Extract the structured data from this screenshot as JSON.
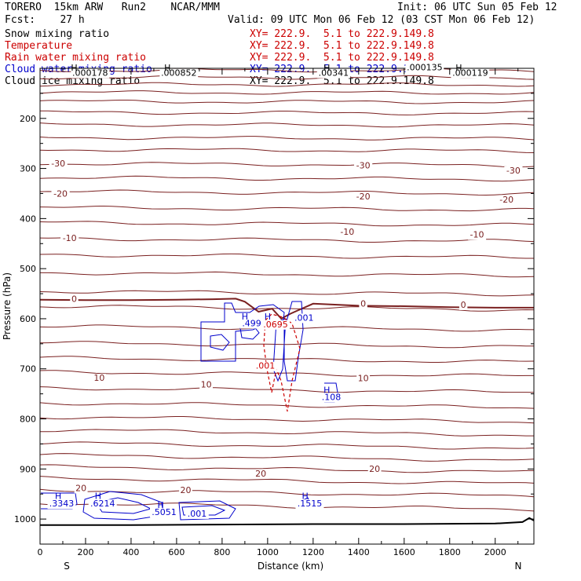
{
  "header": {
    "model": "TORERO  15km ARW   Run2    NCAR/MMM",
    "init": "Init: 06 UTC Sun 05 Feb 12",
    "fcst": "Fcst:    27 h",
    "valid": "Valid: 09 UTC Mon 06 Feb 12 (03 CST Mon 06 Feb 12)"
  },
  "fields": [
    {
      "name": "Snow mixing ratio",
      "xsec": "XY= 222.9.  5.1 to 222.9.149.8",
      "color": "#000000"
    },
    {
      "name": "Temperature",
      "xsec": "XY= 222.9.  5.1 to 222.9.149.8",
      "color": "#cc0000"
    },
    {
      "name": "Rain water mixing ratio",
      "xsec": "XY= 222.9.  5.1 to 222.9.149.8",
      "color": "#cc0000"
    },
    {
      "name": "Cloud water mixing ratio",
      "xsec": "XY= 222.9.  5.1 to 222.9.149.8",
      "color": "#0000cc"
    },
    {
      "name": "Cloud ice mixing ratio",
      "xsec": "XY= 222.9.  5.1 to 222.9.149.8",
      "color": "#000000"
    }
  ],
  "chart_data": {
    "type": "contour",
    "xlabel": "Distance (km)",
    "ylabel": "Pressure (hPa)",
    "xlim": [
      0,
      2170
    ],
    "ylim": [
      1050,
      100
    ],
    "x_ticks": [
      0,
      200,
      400,
      600,
      800,
      1000,
      1200,
      1400,
      1600,
      1800,
      2000
    ],
    "y_ticks": [
      200,
      300,
      400,
      500,
      600,
      700,
      800,
      900,
      1000
    ],
    "left_end": "S",
    "right_end": "N",
    "temperature_isotherms_p": [
      104,
      118,
      132,
      148,
      166,
      188,
      212,
      238,
      262,
      290,
      318,
      346,
      378,
      408,
      440,
      472,
      508,
      545,
      575,
      615,
      648,
      678,
      706,
      738,
      768,
      796,
      822,
      848,
      872,
      895,
      918,
      942,
      968
    ],
    "temperature_labels": [
      {
        "text": "-30",
        "x": 80,
        "p": 296
      },
      {
        "text": "-30",
        "x": 1420,
        "p": 300
      },
      {
        "text": "-30",
        "x": 2080,
        "p": 310
      },
      {
        "text": "-20",
        "x": 90,
        "p": 356
      },
      {
        "text": "-20",
        "x": 1420,
        "p": 362
      },
      {
        "text": "-20",
        "x": 2050,
        "p": 368
      },
      {
        "text": "-10",
        "x": 130,
        "p": 445
      },
      {
        "text": "-10",
        "x": 1350,
        "p": 432
      },
      {
        "text": "-10",
        "x": 1920,
        "p": 438
      },
      {
        "text": "0",
        "x": 150,
        "p": 566
      },
      {
        "text": "0",
        "x": 1420,
        "p": 576
      },
      {
        "text": "0",
        "x": 1860,
        "p": 578
      },
      {
        "text": "10",
        "x": 260,
        "p": 724
      },
      {
        "text": "10",
        "x": 730,
        "p": 737
      },
      {
        "text": "10",
        "x": 1420,
        "p": 725
      },
      {
        "text": "20",
        "x": 180,
        "p": 944
      },
      {
        "text": "20",
        "x": 640,
        "p": 948
      },
      {
        "text": "20",
        "x": 970,
        "p": 915
      },
      {
        "text": "20",
        "x": 1470,
        "p": 906
      }
    ],
    "zero_isotherm": [
      [
        0,
        562
      ],
      [
        200,
        563
      ],
      [
        400,
        563
      ],
      [
        600,
        562
      ],
      [
        760,
        561
      ],
      [
        860,
        560
      ],
      [
        900,
        566
      ],
      [
        960,
        586
      ],
      [
        1020,
        580
      ],
      [
        1060,
        600
      ],
      [
        1100,
        590
      ],
      [
        1200,
        570
      ],
      [
        1400,
        574
      ],
      [
        1600,
        575
      ],
      [
        1800,
        577
      ],
      [
        2000,
        578
      ],
      [
        2170,
        578
      ]
    ],
    "surface": [
      [
        0,
        1012
      ],
      [
        400,
        1012
      ],
      [
        800,
        1011
      ],
      [
        1200,
        1010
      ],
      [
        1600,
        1010
      ],
      [
        2000,
        1009
      ],
      [
        2120,
        1006
      ],
      [
        2150,
        998
      ],
      [
        2170,
        1003
      ]
    ],
    "cloud_water_maxima": [
      {
        "text": ".499",
        "x": 930,
        "p": 615
      },
      {
        "text": ".001",
        "x": 1160,
        "p": 604
      },
      {
        "text": ".108",
        "x": 1280,
        "p": 762
      },
      {
        "text": ".3343",
        "x": 95,
        "p": 975
      },
      {
        "text": ".6214",
        "x": 275,
        "p": 975
      },
      {
        "text": ".5051",
        "x": 545,
        "p": 992
      },
      {
        "text": ".001",
        "x": 690,
        "p": 995
      },
      {
        "text": ".1515",
        "x": 1185,
        "p": 975
      }
    ],
    "rain_labels": [
      {
        "text": ".0695",
        "x": 1035,
        "p": 617
      },
      {
        "text": ".001",
        "x": 990,
        "p": 700
      }
    ],
    "upper_labels": [
      {
        "text": ".000178",
        "x": 220,
        "p": 115
      },
      {
        "text": ".000852",
        "x": 610,
        "p": 115
      },
      {
        "text": ".00341",
        "x": 1290,
        "p": 115
      },
      {
        "text": ".000135",
        "x": 1690,
        "p": 104
      },
      {
        "text": ".000119",
        "x": 1890,
        "p": 115
      }
    ],
    "h_markers": [
      {
        "x": 150,
        "p": 105
      },
      {
        "x": 560,
        "p": 105
      },
      {
        "x": 1260,
        "p": 105
      },
      {
        "x": 1840,
        "p": 105
      },
      {
        "x": 900,
        "p": 602
      },
      {
        "x": 1000,
        "p": 602
      },
      {
        "x": 1260,
        "p": 748
      },
      {
        "x": 80,
        "p": 960
      },
      {
        "x": 255,
        "p": 960
      },
      {
        "x": 530,
        "p": 978
      },
      {
        "x": 1165,
        "p": 960
      }
    ]
  }
}
